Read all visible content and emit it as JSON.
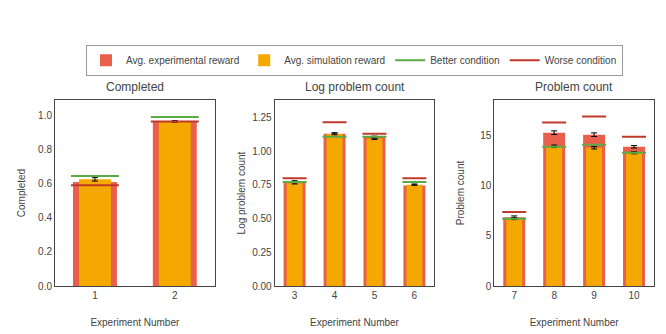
{
  "chart_data": [
    {
      "type": "bar",
      "title": "Completed",
      "x_label": "Experiment Number",
      "y_label": "Completed",
      "categories": [
        "1",
        "2"
      ],
      "series": [
        {
          "name": "Avg. experimental reward",
          "type": "bar",
          "color": "#E8604C",
          "values": [
            0.61,
            0.965
          ],
          "errors": [
            0.012,
            0.004
          ]
        },
        {
          "name": "Avg. simulation reward",
          "type": "bar",
          "color": "#F5A800",
          "values": [
            0.625,
            0.963
          ],
          "errors": [
            0.01,
            0.003
          ]
        },
        {
          "name": "Better condition",
          "type": "segment",
          "color": "#5AAA46",
          "values": [
            0.645,
            0.991
          ]
        },
        {
          "name": "Worse condition",
          "type": "segment",
          "color": "#C0392B",
          "values": [
            0.59,
            0.964
          ]
        }
      ],
      "ylim": [
        0.0,
        1.09
      ],
      "yticks": [
        {
          "value": 0.0,
          "label": "0.0"
        },
        0.2,
        0.4,
        0.6,
        0.8,
        {
          "value": 1.0,
          "label": "1.0"
        }
      ],
      "grid": false,
      "legend": "top"
    },
    {
      "type": "bar",
      "title": "Log problem count",
      "x_label": "Experiment Number",
      "y_label": "Log problem count",
      "categories": [
        "3",
        "4",
        "5",
        "6"
      ],
      "series": [
        {
          "name": "Avg. experimental reward",
          "type": "bar",
          "color": "#E8604C",
          "values": [
            0.775,
            1.13,
            1.105,
            0.745
          ],
          "errors": [
            0.006,
            0.007,
            0.007,
            0.006
          ]
        },
        {
          "name": "Avg. simulation reward",
          "type": "bar",
          "color": "#F5A800",
          "values": [
            0.762,
            1.128,
            1.093,
            0.752
          ],
          "errors": [
            0.005,
            0.006,
            0.006,
            0.005
          ]
        },
        {
          "name": "Better condition",
          "type": "segment",
          "color": "#5AAA46",
          "values": [
            0.772,
            1.108,
            1.108,
            0.772
          ]
        },
        {
          "name": "Worse condition",
          "type": "segment",
          "color": "#C0392B",
          "values": [
            0.8,
            1.215,
            1.13,
            0.8
          ]
        }
      ],
      "ylim": [
        0.0,
        1.38
      ],
      "yticks": [
        {
          "value": 0.0,
          "label": "0.00"
        },
        0.25,
        {
          "value": 0.5,
          "label": "0.50"
        },
        0.75,
        {
          "value": 1.0,
          "label": "1.00"
        },
        1.25
      ],
      "grid": false,
      "legend": "top"
    },
    {
      "type": "bar",
      "title": "Problem count",
      "x_label": "Experiment Number",
      "y_label": "Problem count",
      "categories": [
        "7",
        "8",
        "9",
        "10"
      ],
      "series": [
        {
          "name": "Avg. experimental reward",
          "type": "bar",
          "color": "#E8604C",
          "values": [
            6.85,
            15.25,
            15.05,
            13.85
          ],
          "errors": [
            0.12,
            0.18,
            0.18,
            0.12
          ]
        },
        {
          "name": "Avg. simulation reward",
          "type": "bar",
          "color": "#F5A800",
          "values": [
            6.7,
            13.9,
            13.75,
            13.25
          ],
          "errors": [
            0.1,
            0.12,
            0.12,
            0.1
          ]
        },
        {
          "name": "Better condition",
          "type": "segment",
          "color": "#5AAA46",
          "values": [
            6.7,
            13.85,
            14.05,
            13.25
          ]
        },
        {
          "name": "Worse condition",
          "type": "segment",
          "color": "#C0392B",
          "values": [
            7.35,
            16.25,
            16.85,
            14.85
          ]
        }
      ],
      "ylim": [
        0,
        18.5
      ],
      "yticks": [
        0,
        5,
        10,
        15
      ],
      "grid": false,
      "legend": "top"
    }
  ]
}
